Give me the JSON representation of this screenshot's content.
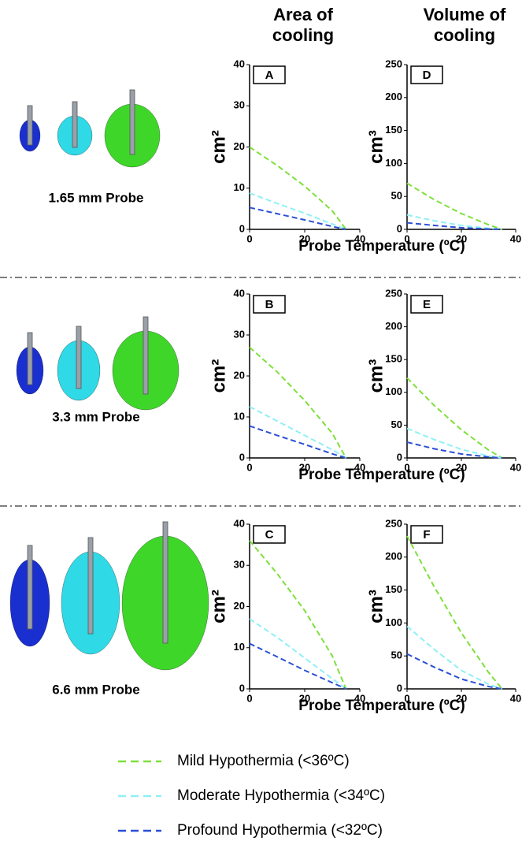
{
  "columns": [
    "Area of cooling",
    "Volume of cooling"
  ],
  "rows": [
    {
      "probe": "1.65 mm Probe",
      "xlabel": "Probe Temperature (ºC)"
    },
    {
      "probe": "3.3 mm Probe",
      "xlabel": "Probe Temperature (ºC)"
    },
    {
      "probe": "6.6 mm Probe",
      "xlabel": "Probe Temperature (ºC)"
    }
  ],
  "chart_data": [
    {
      "type": "line",
      "panel": "A",
      "ylabel": "cm²",
      "x": [
        0,
        10,
        20,
        30,
        35
      ],
      "xlim": [
        0,
        40
      ],
      "xticks": [
        0,
        20,
        40
      ],
      "ylim": [
        0,
        40
      ],
      "yticks": [
        0,
        10,
        20,
        30,
        40
      ],
      "series": [
        {
          "name": "Mild Hypothermia (<36ºC)",
          "color": "#7ee03a",
          "values": [
            20,
            15.5,
            10.5,
            4.5,
            0
          ]
        },
        {
          "name": "Moderate Hypothermia (<34ºC)",
          "color": "#8ff0f5",
          "values": [
            8.8,
            6.3,
            3.9,
            1.3,
            0
          ]
        },
        {
          "name": "Profound Hypothermia (<32ºC)",
          "color": "#2b4fd6",
          "values": [
            5.3,
            3.8,
            2.3,
            0.7,
            0
          ]
        }
      ]
    },
    {
      "type": "line",
      "panel": "D",
      "ylabel": "cm³",
      "x": [
        0,
        10,
        20,
        30,
        35
      ],
      "xlim": [
        0,
        40
      ],
      "xticks": [
        0,
        20,
        40
      ],
      "ylim": [
        0,
        250
      ],
      "yticks": [
        0,
        50,
        100,
        150,
        200,
        250
      ],
      "series": [
        {
          "color": "#7ee03a",
          "values": [
            70,
            45,
            24,
            7,
            0
          ]
        },
        {
          "color": "#8ff0f5",
          "values": [
            22,
            13,
            6,
            1.5,
            0
          ]
        },
        {
          "color": "#2b4fd6",
          "values": [
            10,
            6,
            2.5,
            0.5,
            0
          ]
        }
      ]
    },
    {
      "type": "line",
      "panel": "B",
      "ylabel": "cm²",
      "x": [
        0,
        10,
        20,
        30,
        35
      ],
      "xlim": [
        0,
        40
      ],
      "xticks": [
        0,
        20,
        40
      ],
      "ylim": [
        0,
        40
      ],
      "yticks": [
        0,
        10,
        20,
        30,
        40
      ],
      "series": [
        {
          "color": "#7ee03a",
          "values": [
            27,
            21,
            14,
            6,
            0
          ]
        },
        {
          "color": "#8ff0f5",
          "values": [
            12.5,
            9,
            5.5,
            2,
            0
          ]
        },
        {
          "color": "#2b4fd6",
          "values": [
            7.8,
            5.5,
            3.3,
            1,
            0
          ]
        }
      ]
    },
    {
      "type": "line",
      "panel": "E",
      "ylabel": "cm³",
      "x": [
        0,
        10,
        20,
        30,
        35
      ],
      "xlim": [
        0,
        40
      ],
      "xticks": [
        0,
        20,
        40
      ],
      "ylim": [
        0,
        250
      ],
      "yticks": [
        0,
        50,
        100,
        150,
        200,
        250
      ],
      "series": [
        {
          "color": "#7ee03a",
          "values": [
            122,
            80,
            43,
            12,
            0
          ]
        },
        {
          "color": "#8ff0f5",
          "values": [
            45,
            28,
            13,
            3,
            0
          ]
        },
        {
          "color": "#2b4fd6",
          "values": [
            24,
            14,
            6,
            1.5,
            0
          ]
        }
      ]
    },
    {
      "type": "line",
      "panel": "C",
      "ylabel": "cm²",
      "x": [
        0,
        10,
        20,
        30,
        35
      ],
      "xlim": [
        0,
        40
      ],
      "xticks": [
        0,
        20,
        40
      ],
      "ylim": [
        0,
        40
      ],
      "yticks": [
        0,
        10,
        20,
        30,
        40
      ],
      "series": [
        {
          "color": "#7ee03a",
          "values": [
            36,
            28,
            19,
            8,
            0
          ]
        },
        {
          "color": "#8ff0f5",
          "values": [
            17,
            12.5,
            7.5,
            2.5,
            0
          ]
        },
        {
          "color": "#2b4fd6",
          "values": [
            11,
            7.8,
            4.5,
            1.5,
            0
          ]
        }
      ]
    },
    {
      "type": "line",
      "panel": "F",
      "ylabel": "cm³",
      "x": [
        0,
        10,
        20,
        30,
        35
      ],
      "xlim": [
        0,
        40
      ],
      "xticks": [
        0,
        20,
        40
      ],
      "ylim": [
        0,
        250
      ],
      "yticks": [
        0,
        50,
        100,
        150,
        200,
        250
      ],
      "series": [
        {
          "color": "#7ee03a",
          "values": [
            232,
            155,
            85,
            25,
            0
          ]
        },
        {
          "color": "#8ff0f5",
          "values": [
            95,
            60,
            28,
            7,
            0
          ]
        },
        {
          "color": "#2b4fd6",
          "values": [
            53,
            33,
            15,
            3.5,
            0
          ]
        }
      ]
    }
  ]
}
